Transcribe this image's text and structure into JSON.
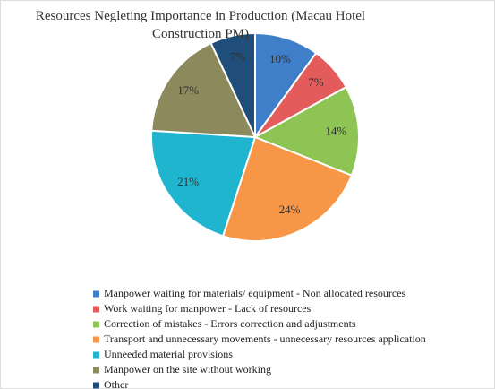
{
  "chart_data": {
    "type": "pie",
    "title": "Resources Negleting Importance in Production (Macau Hotel Construction PM)",
    "categories": [
      "Manpower waiting for materials/ equipment - Non allocated resources",
      "Work waiting for manpower - Lack of resources",
      "Correction of mistakes - Errors correction and adjustments",
      "Transport and unnecessary movements - unnecessary resources application",
      "Unneeded material provisions",
      "Manpower on the site without working",
      "Other"
    ],
    "values": [
      10,
      7,
      14,
      24,
      21,
      17,
      7
    ],
    "value_labels": [
      "10%",
      "7%",
      "14%",
      "24%",
      "21%",
      "17%",
      "7%"
    ],
    "colors": [
      "#3f7fc9",
      "#e45b5b",
      "#8dc453",
      "#f79646",
      "#1fb5cf",
      "#8c8a5c",
      "#1f4e7a"
    ],
    "legend": "bottom"
  }
}
